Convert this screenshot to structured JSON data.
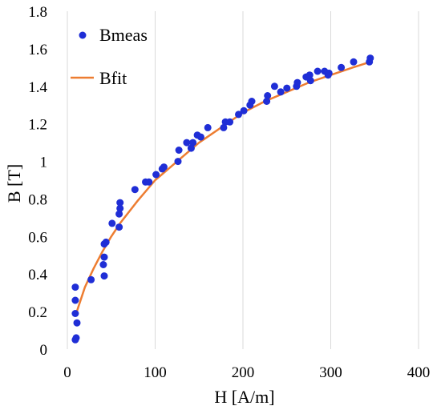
{
  "chart_data": {
    "type": "scatter",
    "title": "",
    "xlabel": "H  [A/m]",
    "ylabel": "B [T]",
    "xlim": [
      0,
      400
    ],
    "ylim": [
      0,
      1.8
    ],
    "x_ticks": [
      0,
      100,
      200,
      300,
      400
    ],
    "y_ticks": [
      0,
      0.2,
      0.4,
      0.6,
      0.8,
      1,
      1.2,
      1.4,
      1.6,
      1.8
    ],
    "x_tick_labels": [
      "0",
      "100",
      "200",
      "300",
      "400"
    ],
    "y_tick_labels": [
      "0",
      "0.2",
      "0.4",
      "0.6",
      "0.8",
      "1",
      "1.2",
      "1.4",
      "1.6",
      "1.8"
    ],
    "grid": "vertical",
    "legend_position": "top-left",
    "series": [
      {
        "name": "Bmeas",
        "kind": "scatter",
        "color": "#1f2ed6",
        "points": [
          [
            9,
            0.05
          ],
          [
            10,
            0.06
          ],
          [
            11,
            0.14
          ],
          [
            9,
            0.19
          ],
          [
            9,
            0.26
          ],
          [
            9,
            0.33
          ],
          [
            27,
            0.37
          ],
          [
            42,
            0.39
          ],
          [
            41,
            0.45
          ],
          [
            42,
            0.49
          ],
          [
            42,
            0.56
          ],
          [
            44,
            0.57
          ],
          [
            51,
            0.67
          ],
          [
            59,
            0.65
          ],
          [
            59,
            0.72
          ],
          [
            60,
            0.75
          ],
          [
            60,
            0.78
          ],
          [
            77,
            0.85
          ],
          [
            89,
            0.89
          ],
          [
            93,
            0.89
          ],
          [
            101,
            0.93
          ],
          [
            108,
            0.96
          ],
          [
            110,
            0.97
          ],
          [
            126,
            1.0
          ],
          [
            127,
            1.06
          ],
          [
            136,
            1.1
          ],
          [
            141,
            1.07
          ],
          [
            143,
            1.1
          ],
          [
            148,
            1.14
          ],
          [
            152,
            1.13
          ],
          [
            160,
            1.18
          ],
          [
            178,
            1.18
          ],
          [
            180,
            1.21
          ],
          [
            185,
            1.21
          ],
          [
            195,
            1.25
          ],
          [
            201,
            1.27
          ],
          [
            208,
            1.3
          ],
          [
            210,
            1.32
          ],
          [
            227,
            1.32
          ],
          [
            228,
            1.35
          ],
          [
            236,
            1.4
          ],
          [
            243,
            1.37
          ],
          [
            250,
            1.39
          ],
          [
            261,
            1.4
          ],
          [
            262,
            1.42
          ],
          [
            272,
            1.45
          ],
          [
            276,
            1.46
          ],
          [
            277,
            1.43
          ],
          [
            285,
            1.48
          ],
          [
            293,
            1.48
          ],
          [
            297,
            1.46
          ],
          [
            298,
            1.47
          ],
          [
            312,
            1.5
          ],
          [
            326,
            1.53
          ],
          [
            344,
            1.53
          ],
          [
            345,
            1.55
          ]
        ]
      },
      {
        "name": "Bfit",
        "kind": "line",
        "color": "#ed7d31",
        "points": [
          [
            10,
            0.19
          ],
          [
            20,
            0.33
          ],
          [
            30,
            0.43
          ],
          [
            40,
            0.52
          ],
          [
            50,
            0.6
          ],
          [
            60,
            0.67
          ],
          [
            80,
            0.79
          ],
          [
            100,
            0.9
          ],
          [
            125,
            1.0
          ],
          [
            150,
            1.1
          ],
          [
            175,
            1.18
          ],
          [
            200,
            1.26
          ],
          [
            225,
            1.32
          ],
          [
            250,
            1.37
          ],
          [
            275,
            1.42
          ],
          [
            300,
            1.46
          ],
          [
            325,
            1.5
          ],
          [
            345,
            1.53
          ]
        ]
      }
    ]
  }
}
